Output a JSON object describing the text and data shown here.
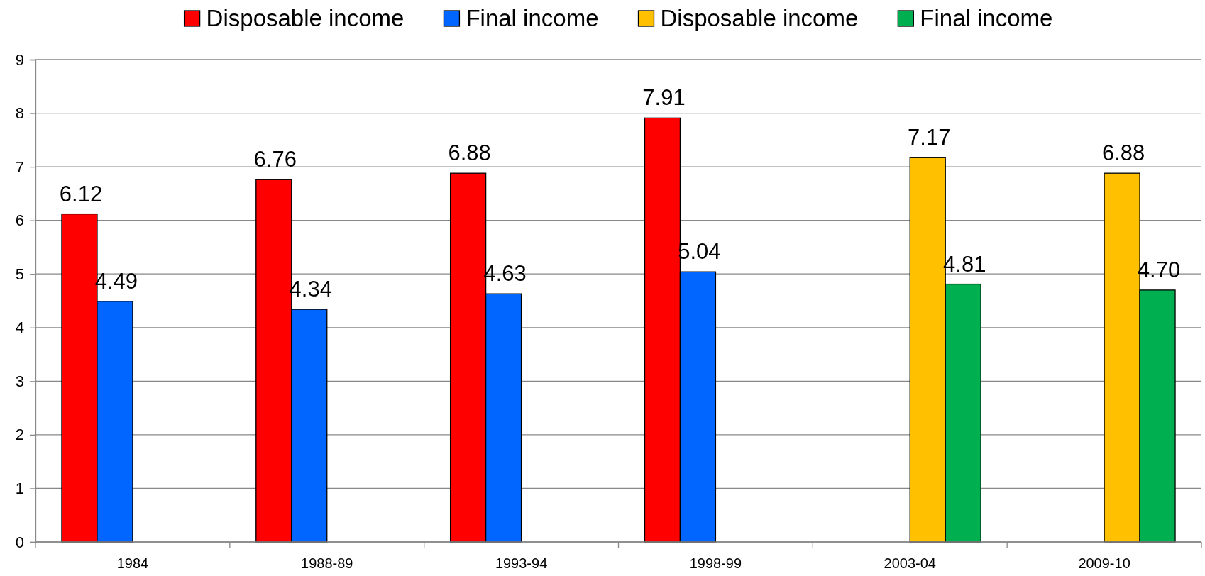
{
  "chart_data": {
    "type": "bar",
    "categories": [
      "1984",
      "1988-89",
      "1993-94",
      "1998-99",
      "2003-04",
      "2009-10"
    ],
    "series": [
      {
        "name": "Disposable income",
        "color": "#ff0000",
        "values": [
          6.12,
          6.76,
          6.88,
          7.91,
          null,
          null
        ],
        "value_labels": [
          "6.12",
          "6.76",
          "6.88",
          "7.91",
          null,
          null
        ]
      },
      {
        "name": "Final income",
        "color": "#0066ff",
        "values": [
          4.49,
          4.34,
          4.63,
          5.04,
          null,
          null
        ],
        "value_labels": [
          "4.49",
          "4.34",
          "4.63",
          "5.04",
          null,
          null
        ]
      },
      {
        "name": "Disposable income",
        "color": "#ffc000",
        "values": [
          null,
          null,
          null,
          null,
          7.17,
          6.88
        ],
        "value_labels": [
          null,
          null,
          null,
          null,
          "7.17",
          "6.88"
        ]
      },
      {
        "name": "Final income",
        "color": "#00b050",
        "values": [
          null,
          null,
          null,
          null,
          4.81,
          4.7
        ],
        "value_labels": [
          null,
          null,
          null,
          null,
          "4.81",
          "4.70"
        ]
      }
    ],
    "ylim": [
      0,
      9
    ],
    "yticks": [
      0,
      1,
      2,
      3,
      4,
      5,
      6,
      7,
      8,
      9
    ],
    "grid": "y",
    "legend": "top"
  }
}
